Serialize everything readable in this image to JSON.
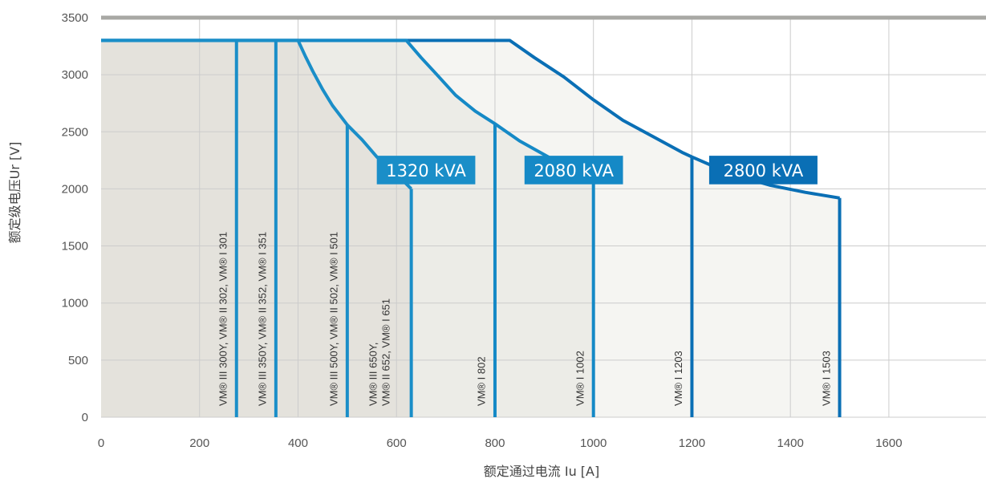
{
  "chart_data": {
    "type": "line",
    "xlabel": "额定通过电流 Iu [A]",
    "ylabel": "额定级电压Ur [V]",
    "xlim": [
      0,
      1800
    ],
    "ylim": [
      0,
      3500
    ],
    "x_ticks": [
      "0",
      "200",
      "400",
      "600",
      "800",
      "1000",
      "1200",
      "1400",
      "1600"
    ],
    "y_ticks": [
      "0",
      "500",
      "1000",
      "1500",
      "2000",
      "2500",
      "3000",
      "3500"
    ],
    "grid": true,
    "max_voltage": 3300,
    "colors": {
      "line_1320": "#1a8ec8",
      "line_2080": "#1589c6",
      "line_2800": "#0a6fb5",
      "fill_1320": "#e4e2dc",
      "fill_2080": "#ecece7",
      "fill_2800": "#f5f5f2",
      "top_bar": "#a8a8a4",
      "grid": "#cccccc"
    },
    "series": [
      {
        "name": "1320 kVA",
        "points": [
          [
            0,
            3300
          ],
          [
            400,
            3300
          ],
          [
            415,
            3160
          ],
          [
            430,
            3030
          ],
          [
            450,
            2870
          ],
          [
            470,
            2730
          ],
          [
            500,
            2560
          ],
          [
            530,
            2430
          ],
          [
            560,
            2280
          ],
          [
            600,
            2130
          ],
          [
            630,
            2000
          ]
        ]
      },
      {
        "name": "2080 kVA",
        "points": [
          [
            0,
            3300
          ],
          [
            620,
            3300
          ],
          [
            650,
            3150
          ],
          [
            680,
            3010
          ],
          [
            720,
            2820
          ],
          [
            760,
            2680
          ],
          [
            800,
            2570
          ],
          [
            850,
            2420
          ],
          [
            900,
            2300
          ],
          [
            950,
            2180
          ],
          [
            1000,
            2080
          ]
        ]
      },
      {
        "name": "2800 kVA",
        "points": [
          [
            0,
            3300
          ],
          [
            830,
            3300
          ],
          [
            880,
            3150
          ],
          [
            940,
            2980
          ],
          [
            1000,
            2780
          ],
          [
            1060,
            2600
          ],
          [
            1120,
            2460
          ],
          [
            1180,
            2320
          ],
          [
            1200,
            2280
          ],
          [
            1280,
            2130
          ],
          [
            1360,
            2030
          ],
          [
            1430,
            1970
          ],
          [
            1500,
            1920
          ]
        ]
      }
    ],
    "vertical_lines": [
      {
        "x": 275,
        "ytop": 3300,
        "series": 0
      },
      {
        "x": 355,
        "ytop": 3300,
        "series": 0
      },
      {
        "x": 500,
        "ytop": 2560,
        "series": 0
      },
      {
        "x": 630,
        "ytop": 2000,
        "series": 0
      },
      {
        "x": 800,
        "ytop": 2570,
        "series": 1
      },
      {
        "x": 1000,
        "ytop": 2080,
        "series": 1
      },
      {
        "x": 1200,
        "ytop": 2280,
        "series": 2
      },
      {
        "x": 1500,
        "ytop": 1920,
        "series": 2
      }
    ],
    "model_labels": [
      {
        "x": 255,
        "lines": [
          "VM® III 300Y, VM® II 302, VM® I 301"
        ]
      },
      {
        "x": 335,
        "lines": [
          "VM® III 350Y, VM® II 352, VM® I 351"
        ]
      },
      {
        "x": 480,
        "lines": [
          "VM® III 500Y, VM® II 502, VM® I 501"
        ]
      },
      {
        "x": 560,
        "lines": [
          "VM® III 650Y,",
          "VM® II 652, VM® I 651"
        ]
      },
      {
        "x": 780,
        "lines": [
          "VM® I 802"
        ]
      },
      {
        "x": 980,
        "lines": [
          "VM® I 1002"
        ]
      },
      {
        "x": 1180,
        "lines": [
          "VM® I 1203"
        ]
      },
      {
        "x": 1480,
        "lines": [
          "VM® I 1503"
        ]
      }
    ],
    "kva_labels": [
      {
        "text": "1320 kVA",
        "series": 0,
        "x_from": 560,
        "x_to": 760,
        "y_from": 2040,
        "y_to": 2290
      },
      {
        "text": "2080 kVA",
        "series": 1,
        "x_from": 860,
        "x_to": 1060,
        "y_from": 2040,
        "y_to": 2290
      },
      {
        "text": "2800 kVA",
        "series": 2,
        "x_from": 1235,
        "x_to": 1455,
        "y_from": 2040,
        "y_to": 2290
      }
    ]
  }
}
